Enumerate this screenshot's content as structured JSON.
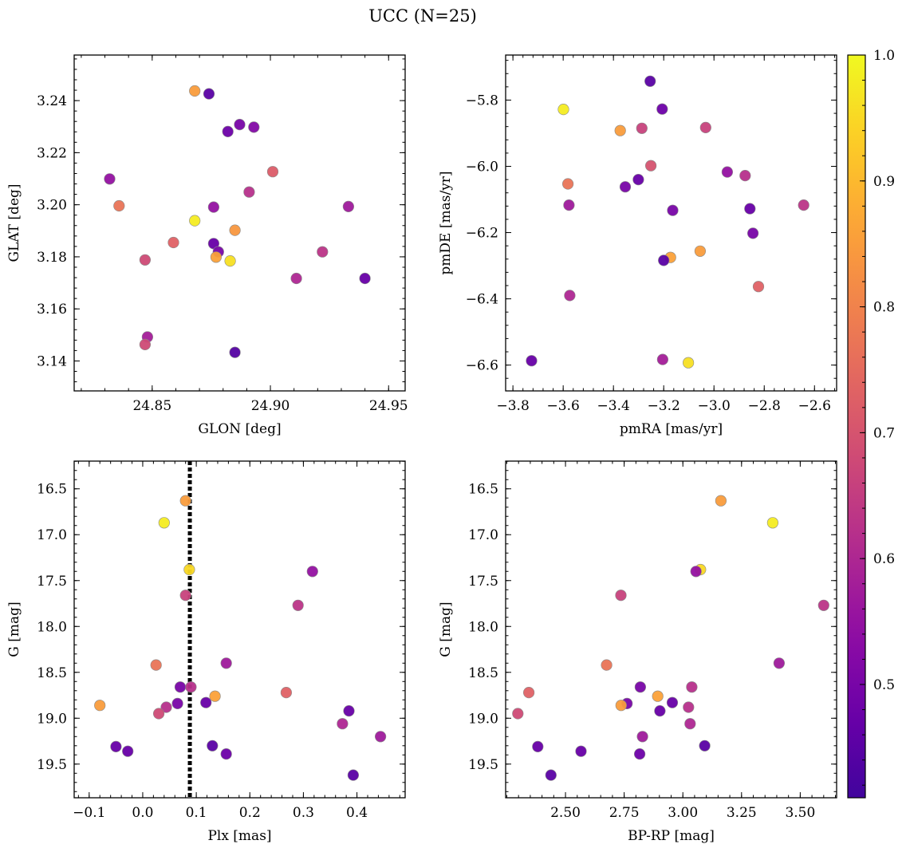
{
  "figure_title": "UCC (N=25)",
  "colorbar": {
    "min": 0.41,
    "max": 1.0,
    "ticks": [
      0.5,
      0.6,
      0.7,
      0.8,
      0.9,
      1.0
    ],
    "tick_labels": [
      "0.5",
      "0.6",
      "0.7",
      "0.8",
      "0.9",
      "1.0"
    ],
    "colormap": "plasma"
  },
  "chart_data": [
    {
      "type": "scatter",
      "xlabel": "GLON [deg]",
      "ylabel": "GLAT [deg]",
      "xlim": [
        24.817,
        24.957
      ],
      "ylim": [
        3.1285,
        3.2575
      ],
      "xticks": [
        24.85,
        24.9,
        24.95
      ],
      "xtick_labels": [
        "24.85",
        "24.90",
        "24.95"
      ],
      "yticks": [
        3.14,
        3.16,
        3.18,
        3.2,
        3.22,
        3.24
      ],
      "ytick_labels": [
        "3.14",
        "3.16",
        "3.18",
        "3.20",
        "3.22",
        "3.24"
      ],
      "points": [
        {
          "x": 24.868,
          "y": 3.2437,
          "c": 0.85
        },
        {
          "x": 24.874,
          "y": 3.2426,
          "c": 0.45
        },
        {
          "x": 24.887,
          "y": 3.2308,
          "c": 0.5
        },
        {
          "x": 24.893,
          "y": 3.2298,
          "c": 0.52
        },
        {
          "x": 24.882,
          "y": 3.2281,
          "c": 0.48
        },
        {
          "x": 24.901,
          "y": 3.2127,
          "c": 0.72
        },
        {
          "x": 24.832,
          "y": 3.2099,
          "c": 0.55
        },
        {
          "x": 24.891,
          "y": 3.2049,
          "c": 0.62
        },
        {
          "x": 24.836,
          "y": 3.1996,
          "c": 0.77
        },
        {
          "x": 24.876,
          "y": 3.1991,
          "c": 0.55
        },
        {
          "x": 24.933,
          "y": 3.1993,
          "c": 0.57
        },
        {
          "x": 24.868,
          "y": 3.1939,
          "c": 0.98
        },
        {
          "x": 24.885,
          "y": 3.1902,
          "c": 0.84
        },
        {
          "x": 24.859,
          "y": 3.1855,
          "c": 0.73
        },
        {
          "x": 24.876,
          "y": 3.1851,
          "c": 0.47
        },
        {
          "x": 24.878,
          "y": 3.1819,
          "c": 0.5
        },
        {
          "x": 24.922,
          "y": 3.1819,
          "c": 0.63
        },
        {
          "x": 24.877,
          "y": 3.1799,
          "c": 0.86
        },
        {
          "x": 24.883,
          "y": 3.1784,
          "c": 0.96
        },
        {
          "x": 24.847,
          "y": 3.1788,
          "c": 0.68
        },
        {
          "x": 24.911,
          "y": 3.1717,
          "c": 0.6
        },
        {
          "x": 24.94,
          "y": 3.1717,
          "c": 0.47
        },
        {
          "x": 24.848,
          "y": 3.1492,
          "c": 0.58
        },
        {
          "x": 24.847,
          "y": 3.1463,
          "c": 0.68
        },
        {
          "x": 24.885,
          "y": 3.1433,
          "c": 0.44
        }
      ]
    },
    {
      "type": "scatter",
      "xlabel": "pmRA [mas/yr]",
      "ylabel": "pmDE [mas/yr]",
      "xlim": [
        -3.829,
        -2.512
      ],
      "ylim": [
        -6.678,
        -5.664
      ],
      "xticks": [
        -3.8,
        -3.6,
        -3.4,
        -3.2,
        -3.0,
        -2.8,
        -2.6
      ],
      "xtick_labels": [
        "−3.8",
        "−3.6",
        "−3.4",
        "−3.2",
        "−3.0",
        "−2.8",
        "−2.6"
      ],
      "yticks": [
        -6.6,
        -6.4,
        -6.2,
        -6.0,
        -5.8
      ],
      "ytick_labels": [
        "−6.6",
        "−6.4",
        "−6.2",
        "−6.0",
        "−5.8"
      ],
      "points": [
        {
          "x": -3.254,
          "y": -5.743,
          "c": 0.45
        },
        {
          "x": -3.206,
          "y": -5.827,
          "c": 0.48
        },
        {
          "x": -3.599,
          "y": -5.828,
          "c": 0.98
        },
        {
          "x": -3.373,
          "y": -5.892,
          "c": 0.85
        },
        {
          "x": -3.287,
          "y": -5.885,
          "c": 0.66
        },
        {
          "x": -3.033,
          "y": -5.883,
          "c": 0.66
        },
        {
          "x": -3.251,
          "y": -5.998,
          "c": 0.7
        },
        {
          "x": -2.947,
          "y": -6.017,
          "c": 0.55
        },
        {
          "x": -2.876,
          "y": -6.028,
          "c": 0.62
        },
        {
          "x": -3.301,
          "y": -6.04,
          "c": 0.47
        },
        {
          "x": -3.581,
          "y": -6.053,
          "c": 0.77
        },
        {
          "x": -3.353,
          "y": -6.062,
          "c": 0.5
        },
        {
          "x": -3.577,
          "y": -6.117,
          "c": 0.57
        },
        {
          "x": -2.643,
          "y": -6.117,
          "c": 0.63
        },
        {
          "x": -2.857,
          "y": -6.128,
          "c": 0.47
        },
        {
          "x": -3.164,
          "y": -6.133,
          "c": 0.5
        },
        {
          "x": -2.845,
          "y": -6.202,
          "c": 0.5
        },
        {
          "x": -3.173,
          "y": -6.275,
          "c": 0.86
        },
        {
          "x": -3.055,
          "y": -6.256,
          "c": 0.85
        },
        {
          "x": -3.2,
          "y": -6.284,
          "c": 0.45
        },
        {
          "x": -2.823,
          "y": -6.363,
          "c": 0.73
        },
        {
          "x": -3.574,
          "y": -6.39,
          "c": 0.6
        },
        {
          "x": -3.726,
          "y": -6.587,
          "c": 0.47
        },
        {
          "x": -3.204,
          "y": -6.583,
          "c": 0.58
        },
        {
          "x": -3.102,
          "y": -6.593,
          "c": 0.96
        }
      ]
    },
    {
      "type": "scatter",
      "xlabel": "Plx [mas]",
      "ylabel": "G [mag]",
      "xlim": [
        -0.128,
        0.49
      ],
      "ylim": [
        19.867,
        16.198
      ],
      "xticks": [
        -0.1,
        0.0,
        0.1,
        0.2,
        0.3,
        0.4
      ],
      "xtick_labels": [
        "−0.1",
        "0.0",
        "0.1",
        "0.2",
        "0.3",
        "0.4"
      ],
      "yticks": [
        16.5,
        17.0,
        17.5,
        18.0,
        18.5,
        19.0,
        19.5
      ],
      "ytick_labels": [
        "16.5",
        "17.0",
        "17.5",
        "18.0",
        "18.5",
        "19.0",
        "19.5"
      ],
      "reference_line_x": 0.088,
      "points": [
        {
          "x": 0.08,
          "y": 16.63,
          "c": 0.85
        },
        {
          "x": 0.04,
          "y": 16.87,
          "c": 0.98
        },
        {
          "x": 0.087,
          "y": 17.38,
          "c": 0.95
        },
        {
          "x": 0.08,
          "y": 17.66,
          "c": 0.66
        },
        {
          "x": 0.317,
          "y": 17.4,
          "c": 0.55
        },
        {
          "x": 0.29,
          "y": 17.77,
          "c": 0.63
        },
        {
          "x": 0.025,
          "y": 18.42,
          "c": 0.77
        },
        {
          "x": 0.156,
          "y": 18.4,
          "c": 0.57
        },
        {
          "x": 0.07,
          "y": 18.66,
          "c": 0.5
        },
        {
          "x": 0.09,
          "y": 18.66,
          "c": 0.62
        },
        {
          "x": 0.268,
          "y": 18.72,
          "c": 0.73
        },
        {
          "x": 0.135,
          "y": 18.76,
          "c": 0.86
        },
        {
          "x": 0.065,
          "y": 18.84,
          "c": 0.5
        },
        {
          "x": 0.118,
          "y": 18.83,
          "c": 0.47
        },
        {
          "x": 0.044,
          "y": 18.88,
          "c": 0.62
        },
        {
          "x": -0.08,
          "y": 18.86,
          "c": 0.85
        },
        {
          "x": 0.03,
          "y": 18.95,
          "c": 0.68
        },
        {
          "x": 0.385,
          "y": 18.92,
          "c": 0.47
        },
        {
          "x": 0.373,
          "y": 19.06,
          "c": 0.6
        },
        {
          "x": 0.444,
          "y": 19.2,
          "c": 0.57
        },
        {
          "x": 0.13,
          "y": 19.3,
          "c": 0.45
        },
        {
          "x": -0.05,
          "y": 19.31,
          "c": 0.47
        },
        {
          "x": -0.028,
          "y": 19.36,
          "c": 0.47
        },
        {
          "x": 0.156,
          "y": 19.39,
          "c": 0.48
        },
        {
          "x": 0.393,
          "y": 19.62,
          "c": 0.45
        }
      ]
    },
    {
      "type": "scatter",
      "xlabel": "BP-RP [mag]",
      "ylabel": "G [mag]",
      "xlim": [
        2.245,
        3.655
      ],
      "ylim": [
        19.867,
        16.198
      ],
      "xticks": [
        2.5,
        2.75,
        3.0,
        3.25,
        3.5
      ],
      "xtick_labels": [
        "2.50",
        "2.75",
        "3.00",
        "3.25",
        "3.50"
      ],
      "yticks": [
        16.5,
        17.0,
        17.5,
        18.0,
        18.5,
        19.0,
        19.5
      ],
      "ytick_labels": [
        "16.5",
        "17.0",
        "17.5",
        "18.0",
        "18.5",
        "19.0",
        "19.5"
      ],
      "points": [
        {
          "x": 3.162,
          "y": 16.63,
          "c": 0.85
        },
        {
          "x": 3.383,
          "y": 16.87,
          "c": 0.98
        },
        {
          "x": 3.075,
          "y": 17.38,
          "c": 0.95
        },
        {
          "x": 3.056,
          "y": 17.4,
          "c": 0.55
        },
        {
          "x": 2.736,
          "y": 17.66,
          "c": 0.66
        },
        {
          "x": 3.6,
          "y": 17.77,
          "c": 0.63
        },
        {
          "x": 2.675,
          "y": 18.42,
          "c": 0.77
        },
        {
          "x": 3.41,
          "y": 18.4,
          "c": 0.57
        },
        {
          "x": 2.819,
          "y": 18.66,
          "c": 0.5
        },
        {
          "x": 3.038,
          "y": 18.66,
          "c": 0.62
        },
        {
          "x": 2.344,
          "y": 18.72,
          "c": 0.73
        },
        {
          "x": 2.893,
          "y": 18.76,
          "c": 0.86
        },
        {
          "x": 2.762,
          "y": 18.84,
          "c": 0.5
        },
        {
          "x": 2.955,
          "y": 18.83,
          "c": 0.47
        },
        {
          "x": 3.024,
          "y": 18.88,
          "c": 0.62
        },
        {
          "x": 2.737,
          "y": 18.86,
          "c": 0.85
        },
        {
          "x": 2.902,
          "y": 18.92,
          "c": 0.47
        },
        {
          "x": 2.297,
          "y": 18.95,
          "c": 0.68
        },
        {
          "x": 3.031,
          "y": 19.06,
          "c": 0.6
        },
        {
          "x": 2.828,
          "y": 19.2,
          "c": 0.57
        },
        {
          "x": 3.093,
          "y": 19.3,
          "c": 0.45
        },
        {
          "x": 2.382,
          "y": 19.31,
          "c": 0.47
        },
        {
          "x": 2.566,
          "y": 19.36,
          "c": 0.47
        },
        {
          "x": 2.816,
          "y": 19.39,
          "c": 0.48
        },
        {
          "x": 2.438,
          "y": 19.62,
          "c": 0.45
        }
      ]
    }
  ]
}
